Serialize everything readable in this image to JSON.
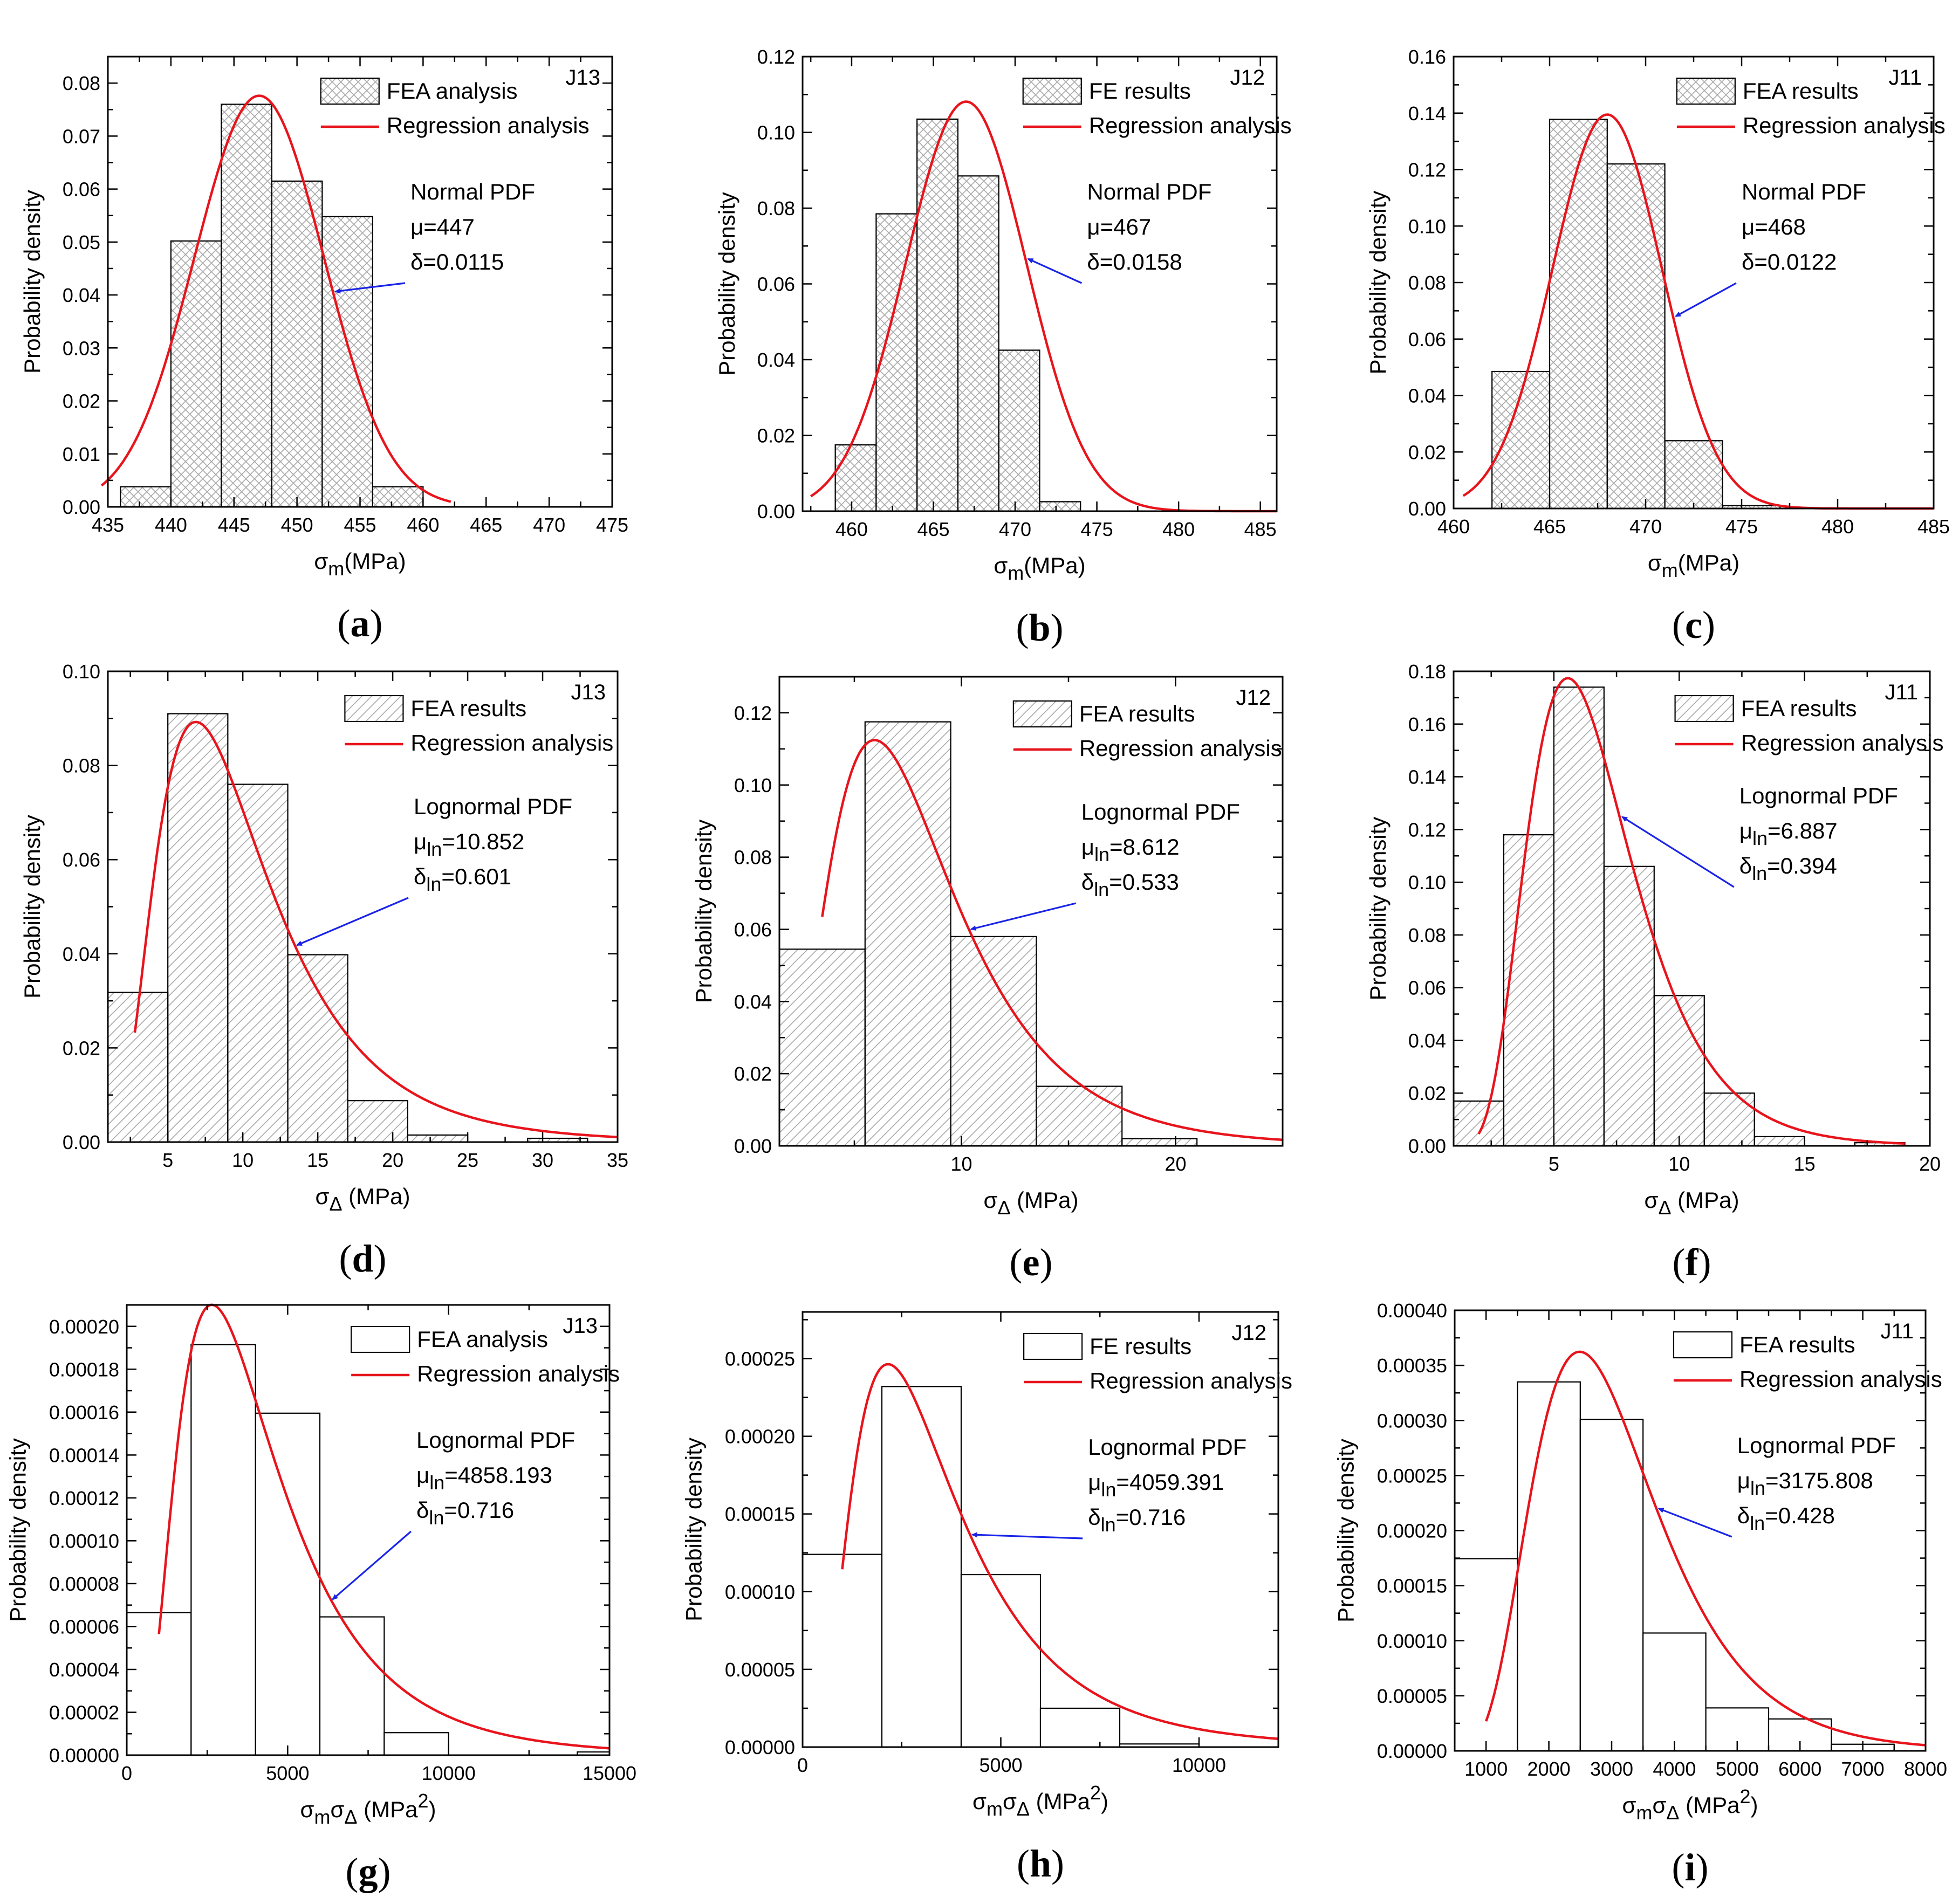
{
  "chart_data": [
    {
      "id": "a",
      "panel_label": "a",
      "type": "bar",
      "curve": "normal",
      "tag": "J13",
      "hatch": "cross",
      "xlabel": {
        "sym": "σ",
        "sub": "m",
        "sup": "",
        "unit": "(MPa)"
      },
      "ylabel": "Probability density",
      "xlim": [
        435,
        475
      ],
      "ylim": [
        0,
        0.085
      ],
      "xticks": [
        435,
        440,
        445,
        450,
        455,
        460,
        465,
        470,
        475
      ],
      "yticks": [
        0.0,
        0.01,
        0.02,
        0.03,
        0.04,
        0.05,
        0.06,
        0.07,
        0.08
      ],
      "xdec": 0,
      "ydec": 2,
      "bins": [
        [
          436,
          440,
          0.0038
        ],
        [
          440,
          444,
          0.0502
        ],
        [
          444,
          448,
          0.076
        ],
        [
          448,
          452,
          0.0615
        ],
        [
          452,
          456,
          0.0548
        ],
        [
          456,
          460,
          0.0038
        ]
      ],
      "legend": [
        "FEA analysis",
        "Regression analysis"
      ],
      "note": {
        "title": "Normal PDF",
        "mu_label": "μ",
        "mu_sub": "",
        "mu": "=447",
        "delta_label": "δ",
        "delta_sub": "",
        "delta": "=0.0115"
      },
      "curve_params": {
        "mean": 447,
        "sd": 5.14,
        "scale": 1.0,
        "x_from": 434.5,
        "x_to": 462.2
      },
      "arrow_to_x": 452.8
    },
    {
      "id": "b",
      "panel_label": "b",
      "type": "bar",
      "curve": "normal",
      "tag": "J12",
      "hatch": "cross",
      "xlabel": {
        "sym": "σ",
        "sub": "m",
        "sup": "",
        "unit": "(MPa)"
      },
      "ylabel": "Probability density",
      "xlim": [
        457,
        486
      ],
      "ylim": [
        0,
        0.12
      ],
      "xticks": [
        460,
        465,
        470,
        475,
        480,
        485
      ],
      "yticks": [
        0.0,
        0.02,
        0.04,
        0.06,
        0.08,
        0.1,
        0.12
      ],
      "xdec": 0,
      "ydec": 2,
      "bins": [
        [
          459,
          461.5,
          0.0175
        ],
        [
          461.5,
          464,
          0.0785
        ],
        [
          464,
          466.5,
          0.1035
        ],
        [
          466.5,
          469,
          0.0885
        ],
        [
          469,
          471.5,
          0.0425
        ],
        [
          471.5,
          474,
          0.0025
        ]
      ],
      "legend": [
        "FE results",
        "Regression analysis"
      ],
      "note": {
        "title": "Normal PDF",
        "mu_label": "μ",
        "mu_sub": "",
        "mu": "=467",
        "delta_label": "δ",
        "delta_sub": "",
        "delta": "=0.0158"
      },
      "curve_params": {
        "mean": 467,
        "sd": 3.69,
        "scale": 1.0,
        "x_from": 457.5,
        "x_to": 486
      },
      "arrow_to_x": 470.6
    },
    {
      "id": "c",
      "panel_label": "c",
      "type": "bar",
      "curve": "normal",
      "tag": "J11",
      "hatch": "cross",
      "xlabel": {
        "sym": "σ",
        "sub": "m",
        "sup": "",
        "unit": "(MPa)"
      },
      "ylabel": "Probability density",
      "xlim": [
        460,
        485
      ],
      "ylim": [
        0,
        0.16
      ],
      "xticks": [
        460,
        465,
        470,
        475,
        480,
        485
      ],
      "yticks": [
        0.0,
        0.02,
        0.04,
        0.06,
        0.08,
        0.1,
        0.12,
        0.14,
        0.16
      ],
      "xdec": 0,
      "ydec": 2,
      "bins": [
        [
          462,
          465,
          0.0485
        ],
        [
          465,
          468,
          0.1378
        ],
        [
          468,
          471,
          0.122
        ],
        [
          471,
          474,
          0.024
        ],
        [
          474,
          477,
          0.001
        ]
      ],
      "legend": [
        "FEA results",
        "Regression analysis"
      ],
      "note": {
        "title": "Normal PDF",
        "mu_label": "μ",
        "mu_sub": "",
        "mu": "=468",
        "delta_label": "δ",
        "delta_sub": "",
        "delta": "=0.0122"
      },
      "curve_params": {
        "mean": 468,
        "sd": 2.86,
        "scale": 1.0,
        "x_from": 460.5,
        "x_to": 485
      },
      "arrow_to_x": 471.4
    },
    {
      "id": "d",
      "panel_label": "d",
      "type": "bar",
      "curve": "lognormal",
      "tag": "J13",
      "hatch": "diag",
      "xlabel": {
        "sym": "σ",
        "sub": "Δ",
        "sup": "",
        "unit": " (MPa)"
      },
      "ylabel": "Probability density",
      "xlim": [
        1,
        35
      ],
      "ylim": [
        0,
        0.1
      ],
      "xticks": [
        5,
        10,
        15,
        20,
        25,
        30,
        35
      ],
      "yticks": [
        0.0,
        0.02,
        0.04,
        0.06,
        0.08,
        0.1
      ],
      "xdec": 0,
      "ydec": 2,
      "bins": [
        [
          1,
          5,
          0.0318
        ],
        [
          5,
          9,
          0.091
        ],
        [
          9,
          13,
          0.076
        ],
        [
          13,
          17,
          0.0398
        ],
        [
          17,
          21,
          0.0088
        ],
        [
          21,
          25,
          0.0015
        ],
        [
          29,
          33,
          0.0008
        ]
      ],
      "legend": [
        "FEA results",
        "Regression analysis"
      ],
      "note": {
        "title": "Lognormal PDF",
        "mu_label": "μ",
        "mu_sub": "ln",
        "mu": "=10.852",
        "delta_label": "δ",
        "delta_sub": "ln",
        "delta": "=0.601"
      },
      "curve_params": {
        "mu_ln": 2.226,
        "sigma_ln": 0.547,
        "scale": 0.976,
        "x_from": 2.8,
        "x_to": 35
      },
      "arrow_to_x": 13.4
    },
    {
      "id": "e",
      "panel_label": "e",
      "type": "bar",
      "curve": "lognormal",
      "tag": "J12",
      "hatch": "diag",
      "xlabel": {
        "sym": "σ",
        "sub": "Δ",
        "sup": "",
        "unit": " (MPa)"
      },
      "ylabel": "Probability density",
      "xlim": [
        1.5,
        25
      ],
      "ylim": [
        0,
        0.13
      ],
      "xticks": [
        10,
        20
      ],
      "yticks": [
        0.0,
        0.02,
        0.04,
        0.06,
        0.08,
        0.1,
        0.12
      ],
      "xdec": 0,
      "ydec": 2,
      "bins": [
        [
          1.5,
          5.5,
          0.0545
        ],
        [
          5.5,
          9.5,
          0.1175
        ],
        [
          9.5,
          13.5,
          0.058
        ],
        [
          13.5,
          17.5,
          0.0165
        ],
        [
          17.5,
          21,
          0.002
        ]
      ],
      "legend": [
        "FEA results",
        "Regression analysis"
      ],
      "note": {
        "title": "Lognormal PDF",
        "mu_label": "μ",
        "mu_sub": "ln",
        "mu": "=8.612",
        "delta_label": "δ",
        "delta_sub": "ln",
        "delta": "=0.533"
      },
      "curve_params": {
        "mu_ln": 2.027,
        "sigma_ln": 0.495,
        "scale": 0.937,
        "x_from": 3.5,
        "x_to": 25
      },
      "arrow_to_x": 10.3
    },
    {
      "id": "f",
      "panel_label": "f",
      "type": "bar",
      "curve": "lognormal",
      "tag": "J11",
      "hatch": "diag",
      "xlabel": {
        "sym": "σ",
        "sub": "Δ",
        "sup": "",
        "unit": " (MPa)"
      },
      "ylabel": "Probability density",
      "xlim": [
        1,
        20
      ],
      "ylim": [
        0,
        0.18
      ],
      "xticks": [
        5,
        10,
        15,
        20
      ],
      "yticks": [
        0.0,
        0.02,
        0.04,
        0.06,
        0.08,
        0.1,
        0.12,
        0.14,
        0.16,
        0.18
      ],
      "xdec": 0,
      "ydec": 2,
      "bins": [
        [
          1,
          3,
          0.017
        ],
        [
          3,
          5,
          0.118
        ],
        [
          5,
          7,
          0.174
        ],
        [
          7,
          9,
          0.106
        ],
        [
          9,
          11,
          0.057
        ],
        [
          11,
          13,
          0.02
        ],
        [
          13,
          15,
          0.0035
        ],
        [
          17,
          19,
          0.0012
        ]
      ],
      "legend": [
        "FEA results",
        "Regression analysis"
      ],
      "note": {
        "title": "Lognormal PDF",
        "mu_label": "μ",
        "mu_sub": "ln",
        "mu": "=6.887",
        "delta_label": "δ",
        "delta_sub": "ln",
        "delta": "=0.394"
      },
      "curve_params": {
        "mu_ln": 1.857,
        "sigma_ln": 0.377,
        "scale": 1.0,
        "x_from": 2,
        "x_to": 19
      },
      "arrow_to_x": 7.6
    },
    {
      "id": "g",
      "panel_label": "g",
      "type": "bar",
      "curve": "lognormal",
      "tag": "J13",
      "hatch": "none",
      "xlabel": {
        "sym": "σ",
        "sub": "m",
        "sym2": "σ",
        "sub2": "Δ",
        "sup": "2",
        "unit": " (MPa"
      },
      "ylabel": "Probability density",
      "xlim": [
        0,
        15000
      ],
      "ylim": [
        0,
        0.00021
      ],
      "xticks": [
        0,
        5000,
        10000,
        15000
      ],
      "yticks": [
        0.0,
        2e-05,
        4e-05,
        6e-05,
        8e-05,
        0.0001,
        0.00012,
        0.00014,
        0.00016,
        0.00018,
        0.0002
      ],
      "xdec": 0,
      "ydec": 5,
      "bins": [
        [
          0,
          2000,
          6.65e-05
        ],
        [
          2000,
          4000,
          0.0001915
        ],
        [
          4000,
          6000,
          0.0001595
        ],
        [
          6000,
          8000,
          6.45e-05
        ],
        [
          8000,
          10000,
          1.05e-05
        ],
        [
          14000,
          15000,
          1.5e-06
        ]
      ],
      "legend": [
        "FEA analysis",
        "Regression analysis"
      ],
      "note": {
        "title": "Lognormal PDF",
        "mu_label": "μ",
        "mu_sub": "ln",
        "mu": "=4858.193",
        "delta_label": "δ",
        "delta_sub": "ln",
        "delta": "=0.716"
      },
      "curve_params": {
        "mu_ln": 8.24,
        "sigma_ln": 0.6,
        "scale": 1.0,
        "x_from": 1000,
        "x_to": 15000
      },
      "arrow_to_x": 6300
    },
    {
      "id": "h",
      "panel_label": "h",
      "type": "bar",
      "curve": "lognormal",
      "tag": "J12",
      "hatch": "none",
      "xlabel": {
        "sym": "σ",
        "sub": "m",
        "sym2": "σ",
        "sub2": "Δ",
        "sup": "2",
        "unit": " (MPa"
      },
      "ylabel": "Probability density",
      "xlim": [
        0,
        12000
      ],
      "ylim": [
        0,
        0.00028
      ],
      "xticks": [
        0,
        5000,
        10000
      ],
      "yticks": [
        0.0,
        5e-05,
        0.0001,
        0.00015,
        0.0002,
        0.00025
      ],
      "xdec": 0,
      "ydec": 5,
      "bins": [
        [
          0,
          2000,
          0.000124
        ],
        [
          2000,
          4000,
          0.000232
        ],
        [
          4000,
          6000,
          0.000111
        ],
        [
          6000,
          8000,
          2.5e-05
        ],
        [
          8000,
          10000,
          2e-06
        ]
      ],
      "legend": [
        "FE results",
        "Regression analysis"
      ],
      "note": {
        "title": "Lognormal PDF",
        "mu_label": "μ",
        "mu_sub": "ln",
        "mu": "=4059.391",
        "delta_label": "δ",
        "delta_sub": "ln",
        "delta": "=0.716"
      },
      "curve_params": {
        "mu_ln": 8.06,
        "sigma_ln": 0.62,
        "scale": 1.0,
        "x_from": 1000,
        "x_to": 12000
      },
      "arrow_to_x": 4200
    },
    {
      "id": "i",
      "panel_label": "i",
      "type": "bar",
      "curve": "lognormal",
      "tag": "J11",
      "hatch": "none",
      "xlabel": {
        "sym": "σ",
        "sub": "m",
        "sym2": "σ",
        "sub2": "Δ",
        "sup": "2",
        "unit": " (MPa"
      },
      "ylabel": "Probability density",
      "xlim": [
        500,
        8000
      ],
      "ylim": [
        0,
        0.0004
      ],
      "xticks": [
        1000,
        2000,
        3000,
        4000,
        5000,
        6000,
        7000,
        8000
      ],
      "yticks": [
        0.0,
        5e-05,
        0.0001,
        0.00015,
        0.0002,
        0.00025,
        0.0003,
        0.00035,
        0.0004
      ],
      "xdec": 0,
      "ydec": 5,
      "bins": [
        [
          500,
          1500,
          0.0001745
        ],
        [
          1500,
          2500,
          0.000335
        ],
        [
          2500,
          3500,
          0.000301
        ],
        [
          3500,
          4500,
          0.000107
        ],
        [
          4500,
          5500,
          3.9e-05
        ],
        [
          5500,
          6500,
          2.9e-05
        ],
        [
          6500,
          7500,
          6e-06
        ]
      ],
      "legend": [
        "FEA results",
        "Regression analysis"
      ],
      "note": {
        "title": "Lognormal PDF",
        "mu_label": "μ",
        "mu_sub": "ln",
        "mu": "=3175.808",
        "delta_label": "δ",
        "delta_sub": "ln",
        "delta": "=0.428"
      },
      "curve_params": {
        "mu_ln": 7.98,
        "sigma_ln": 0.4,
        "scale": 0.98,
        "x_from": 1000,
        "x_to": 8000
      },
      "arrow_to_x": 3700
    }
  ],
  "colors": {
    "curve": "#e8141c",
    "arrow": "#1a24e6",
    "hatch": "#a8a8a8",
    "frame": "#000000"
  }
}
